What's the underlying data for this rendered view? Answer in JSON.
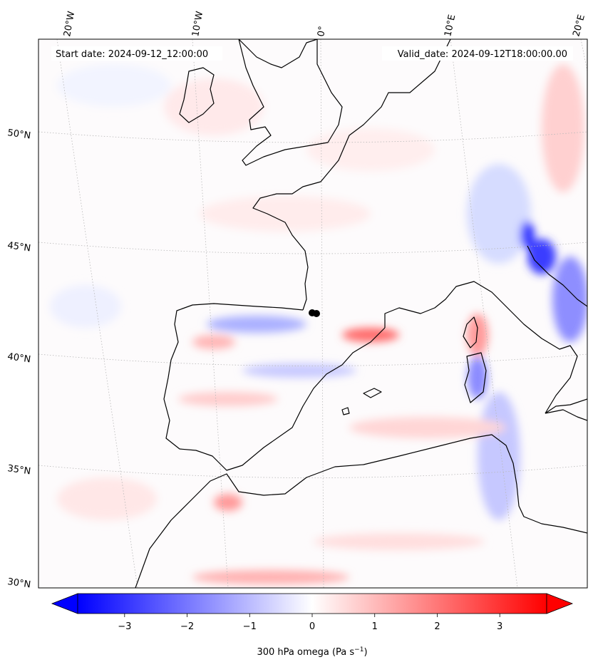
{
  "header": {
    "start_date": "Start date: 2024-09-12_12:00:00",
    "valid_date": "Valid_date: 2024-09-12T18:00:00.00"
  },
  "map": {
    "projection": "lambert-conic",
    "extent": {
      "lon": [
        -22,
        22
      ],
      "lat": [
        30,
        54
      ]
    },
    "lon_labels": [
      "20°W",
      "10°W",
      "0°",
      "10°E",
      "20°E"
    ],
    "lat_labels": [
      "50°N",
      "45°N",
      "40°N",
      "35°N",
      "30°N"
    ],
    "gridlines": true,
    "coastline_color": "#000000",
    "marker": {
      "name": "location-marker",
      "color": "#000000"
    }
  },
  "colorbar": {
    "label_prefix": "300 hPa omega (Pa s",
    "label_exp": "−1",
    "label_suffix": ")",
    "ticks": [
      "−3",
      "−2",
      "−1",
      "0",
      "1",
      "2",
      "3"
    ],
    "range": [
      -3.75,
      3.75
    ],
    "colormap": "bwr",
    "extend": "both",
    "low_color": "#0000ff",
    "mid_color": "#ffffff",
    "high_color": "#ff0000"
  }
}
